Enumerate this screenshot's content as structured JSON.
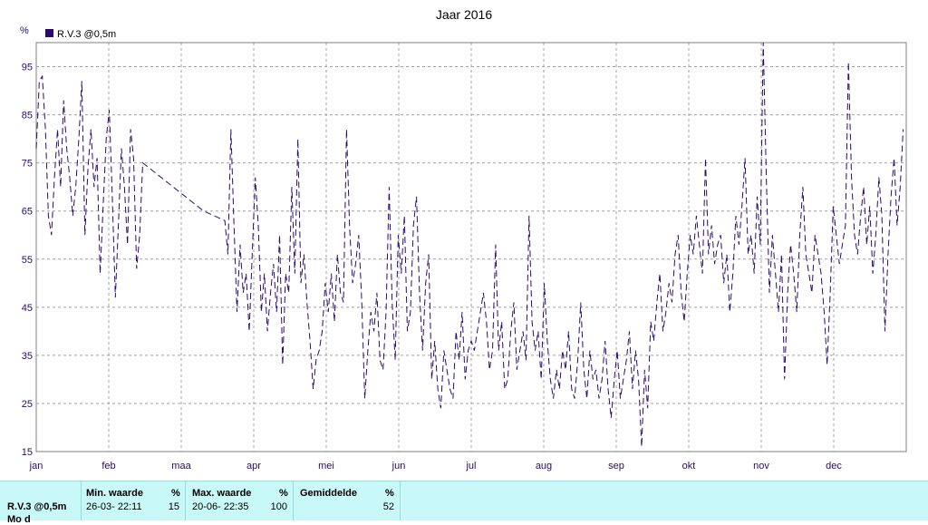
{
  "chart_data": {
    "type": "line",
    "title": "Jaar 2016",
    "ylabel": "%",
    "ylim": [
      15,
      100
    ],
    "yticks": [
      15,
      25,
      35,
      45,
      55,
      65,
      75,
      85,
      95
    ],
    "months": [
      "jan",
      "feb",
      "maa",
      "apr",
      "mei",
      "jun",
      "jul",
      "aug",
      "sep",
      "okt",
      "nov",
      "dec"
    ],
    "grid": true,
    "legend_position": "top-left",
    "series": [
      {
        "name": "R.V.3 @0,5m",
        "color": "#2a0a6e",
        "dash": "dashed",
        "points": [
          [
            0,
            78
          ],
          [
            1,
            92
          ],
          [
            2,
            93
          ],
          [
            3,
            82
          ],
          [
            4,
            64
          ],
          [
            5,
            60
          ],
          [
            6,
            72
          ],
          [
            7,
            82
          ],
          [
            8,
            70
          ],
          [
            9,
            88
          ],
          [
            10,
            78
          ],
          [
            11,
            72
          ],
          [
            12,
            64
          ],
          [
            13,
            70
          ],
          [
            14,
            80
          ],
          [
            15,
            92
          ],
          [
            16,
            60
          ],
          [
            17,
            74
          ],
          [
            18,
            82
          ],
          [
            19,
            70
          ],
          [
            20,
            76
          ],
          [
            21,
            52
          ],
          [
            22,
            66
          ],
          [
            23,
            80
          ],
          [
            24,
            86
          ],
          [
            25,
            68
          ],
          [
            26,
            47
          ],
          [
            27,
            62
          ],
          [
            28,
            78
          ],
          [
            29,
            70
          ],
          [
            30,
            58
          ],
          [
            31,
            82
          ],
          [
            32,
            76
          ],
          [
            33,
            53
          ],
          [
            34,
            60
          ],
          [
            35,
            75
          ],
          [
            47,
            69
          ],
          [
            55,
            65
          ],
          [
            62,
            63
          ],
          [
            63,
            56
          ],
          [
            64,
            82
          ],
          [
            65,
            62
          ],
          [
            66,
            44
          ],
          [
            67,
            58
          ],
          [
            68,
            48
          ],
          [
            69,
            52
          ],
          [
            70,
            40
          ],
          [
            71,
            56
          ],
          [
            72,
            72
          ],
          [
            73,
            62
          ],
          [
            74,
            44
          ],
          [
            75,
            52
          ],
          [
            76,
            40
          ],
          [
            77,
            48
          ],
          [
            78,
            54
          ],
          [
            79,
            44
          ],
          [
            80,
            60
          ],
          [
            81,
            33
          ],
          [
            82,
            52
          ],
          [
            83,
            48
          ],
          [
            84,
            70
          ],
          [
            85,
            52
          ],
          [
            86,
            80
          ],
          [
            87,
            50
          ],
          [
            88,
            56
          ],
          [
            89,
            46
          ],
          [
            90,
            38
          ],
          [
            91,
            28
          ],
          [
            92,
            34
          ],
          [
            93,
            36
          ],
          [
            94,
            40
          ],
          [
            95,
            50
          ],
          [
            96,
            44
          ],
          [
            97,
            52
          ],
          [
            98,
            42
          ],
          [
            99,
            56
          ],
          [
            100,
            48
          ],
          [
            101,
            46
          ],
          [
            102,
            82
          ],
          [
            103,
            62
          ],
          [
            104,
            50
          ],
          [
            105,
            54
          ],
          [
            106,
            60
          ],
          [
            107,
            46
          ],
          [
            108,
            26
          ],
          [
            109,
            36
          ],
          [
            110,
            44
          ],
          [
            111,
            40
          ],
          [
            112,
            48
          ],
          [
            113,
            34
          ],
          [
            114,
            32
          ],
          [
            115,
            44
          ],
          [
            116,
            70
          ],
          [
            117,
            46
          ],
          [
            118,
            34
          ],
          [
            119,
            60
          ],
          [
            120,
            52
          ],
          [
            121,
            64
          ],
          [
            122,
            40
          ],
          [
            123,
            44
          ],
          [
            124,
            62
          ],
          [
            125,
            68
          ],
          [
            126,
            48
          ],
          [
            127,
            36
          ],
          [
            128,
            50
          ],
          [
            129,
            56
          ],
          [
            130,
            30
          ],
          [
            131,
            38
          ],
          [
            132,
            28
          ],
          [
            133,
            24
          ],
          [
            134,
            36
          ],
          [
            135,
            32
          ],
          [
            136,
            28
          ],
          [
            137,
            26
          ],
          [
            138,
            40
          ],
          [
            139,
            34
          ],
          [
            140,
            44
          ],
          [
            141,
            30
          ],
          [
            142,
            36
          ],
          [
            143,
            38
          ],
          [
            144,
            36
          ],
          [
            145,
            40
          ],
          [
            146,
            44
          ],
          [
            147,
            48
          ],
          [
            148,
            42
          ],
          [
            149,
            32
          ],
          [
            150,
            36
          ],
          [
            151,
            58
          ],
          [
            152,
            36
          ],
          [
            153,
            42
          ],
          [
            154,
            28
          ],
          [
            155,
            30
          ],
          [
            156,
            40
          ],
          [
            157,
            46
          ],
          [
            158,
            32
          ],
          [
            159,
            36
          ],
          [
            160,
            40
          ],
          [
            161,
            34
          ],
          [
            162,
            64
          ],
          [
            163,
            42
          ],
          [
            164,
            36
          ],
          [
            165,
            40
          ],
          [
            166,
            30
          ],
          [
            167,
            50
          ],
          [
            168,
            38
          ],
          [
            169,
            30
          ],
          [
            170,
            26
          ],
          [
            171,
            32
          ],
          [
            172,
            28
          ],
          [
            173,
            36
          ],
          [
            174,
            32
          ],
          [
            175,
            40
          ],
          [
            176,
            28
          ],
          [
            177,
            26
          ],
          [
            178,
            34
          ],
          [
            179,
            46
          ],
          [
            180,
            32
          ],
          [
            181,
            26
          ],
          [
            182,
            36
          ],
          [
            183,
            30
          ],
          [
            184,
            32
          ],
          [
            185,
            26
          ],
          [
            186,
            30
          ],
          [
            187,
            38
          ],
          [
            188,
            28
          ],
          [
            189,
            22
          ],
          [
            190,
            30
          ],
          [
            191,
            36
          ],
          [
            192,
            26
          ],
          [
            193,
            30
          ],
          [
            194,
            34
          ],
          [
            195,
            40
          ],
          [
            196,
            28
          ],
          [
            197,
            36
          ],
          [
            198,
            30
          ],
          [
            199,
            16
          ],
          [
            200,
            32
          ],
          [
            201,
            24
          ],
          [
            202,
            42
          ],
          [
            203,
            38
          ],
          [
            204,
            46
          ],
          [
            205,
            52
          ],
          [
            206,
            40
          ],
          [
            207,
            44
          ],
          [
            208,
            50
          ],
          [
            209,
            46
          ],
          [
            210,
            56
          ],
          [
            211,
            60
          ],
          [
            212,
            48
          ],
          [
            213,
            42
          ],
          [
            214,
            52
          ],
          [
            215,
            60
          ],
          [
            216,
            56
          ],
          [
            217,
            64
          ],
          [
            218,
            58
          ],
          [
            219,
            52
          ],
          [
            220,
            76
          ],
          [
            221,
            56
          ],
          [
            222,
            62
          ],
          [
            223,
            54
          ],
          [
            224,
            58
          ],
          [
            225,
            60
          ],
          [
            226,
            50
          ],
          [
            227,
            56
          ],
          [
            228,
            44
          ],
          [
            229,
            52
          ],
          [
            230,
            64
          ],
          [
            231,
            58
          ],
          [
            232,
            66
          ],
          [
            233,
            76
          ],
          [
            234,
            56
          ],
          [
            235,
            60
          ],
          [
            236,
            52
          ],
          [
            237,
            68
          ],
          [
            238,
            58
          ],
          [
            239,
            100
          ],
          [
            240,
            72
          ],
          [
            241,
            48
          ],
          [
            242,
            60
          ],
          [
            243,
            52
          ],
          [
            244,
            44
          ],
          [
            245,
            56
          ],
          [
            246,
            30
          ],
          [
            247,
            48
          ],
          [
            248,
            58
          ],
          [
            249,
            52
          ],
          [
            250,
            44
          ],
          [
            251,
            60
          ],
          [
            252,
            70
          ],
          [
            253,
            56
          ],
          [
            254,
            52
          ],
          [
            255,
            48
          ],
          [
            256,
            60
          ],
          [
            257,
            56
          ],
          [
            258,
            52
          ],
          [
            259,
            44
          ],
          [
            260,
            33
          ],
          [
            261,
            48
          ],
          [
            262,
            66
          ],
          [
            263,
            60
          ],
          [
            264,
            54
          ],
          [
            265,
            58
          ],
          [
            266,
            62
          ],
          [
            267,
            96
          ],
          [
            268,
            72
          ],
          [
            269,
            60
          ],
          [
            270,
            56
          ],
          [
            271,
            64
          ],
          [
            272,
            70
          ],
          [
            273,
            58
          ],
          [
            274,
            66
          ],
          [
            275,
            52
          ],
          [
            276,
            60
          ],
          [
            277,
            72
          ],
          [
            278,
            64
          ],
          [
            279,
            40
          ],
          [
            280,
            56
          ],
          [
            281,
            68
          ],
          [
            282,
            76
          ],
          [
            283,
            62
          ],
          [
            284,
            70
          ],
          [
            285,
            82
          ]
        ]
      }
    ]
  },
  "summary": {
    "station": "R.V.3 @0,5m",
    "station_next_line": "Mo       d",
    "min_header": "Min. waarde",
    "min_unit": "%",
    "min_when": "26-03- 22:11",
    "min_value": "15",
    "max_header": "Max. waarde",
    "max_unit": "%",
    "max_when": "20-06- 22:35",
    "max_value": "100",
    "avg_header": "Gemiddelde",
    "avg_unit": "%",
    "avg_value": "52"
  }
}
